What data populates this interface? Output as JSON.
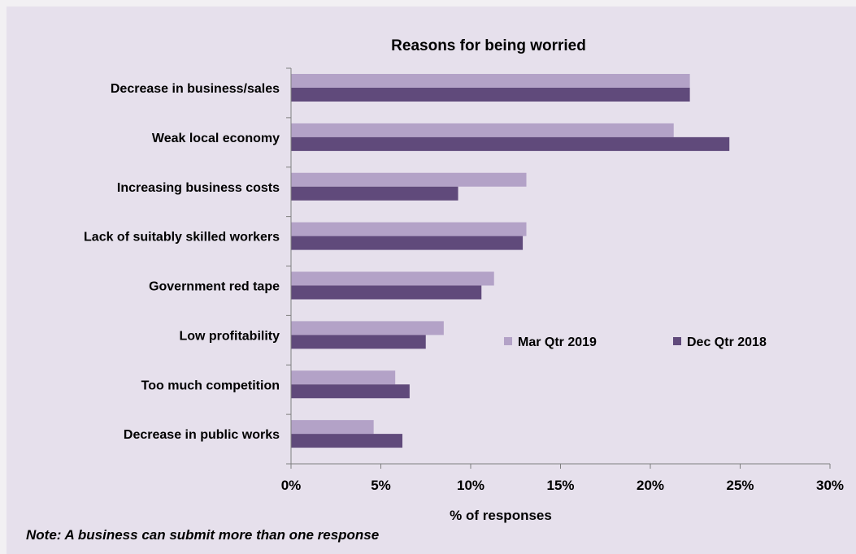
{
  "note": "Note: A business can submit more than one response",
  "chart_data": {
    "type": "bar",
    "orientation": "horizontal",
    "title": "Reasons for being worried",
    "xlabel": "% of responses",
    "ylabel": "",
    "xlim": [
      0,
      30
    ],
    "x_ticks": [
      "0%",
      "5%",
      "10%",
      "15%",
      "20%",
      "25%",
      "30%"
    ],
    "x_tick_values": [
      0,
      5,
      10,
      15,
      20,
      25,
      30
    ],
    "grid": false,
    "legend_position": "inside-right",
    "categories": [
      "Decrease in business/sales",
      "Weak local economy",
      "Increasing business costs",
      "Lack of suitably skilled workers",
      "Government red tape",
      "Low profitability",
      "Too much competition",
      "Decrease in public works"
    ],
    "series": [
      {
        "name": "Mar Qtr 2019",
        "color": "#b3a2c7",
        "values": [
          22.2,
          21.3,
          13.1,
          13.1,
          11.3,
          8.5,
          5.8,
          4.6
        ]
      },
      {
        "name": "Dec Qtr 2018",
        "color": "#604a7b",
        "values": [
          22.2,
          24.4,
          9.3,
          12.9,
          10.6,
          7.5,
          6.6,
          6.2
        ]
      }
    ]
  }
}
